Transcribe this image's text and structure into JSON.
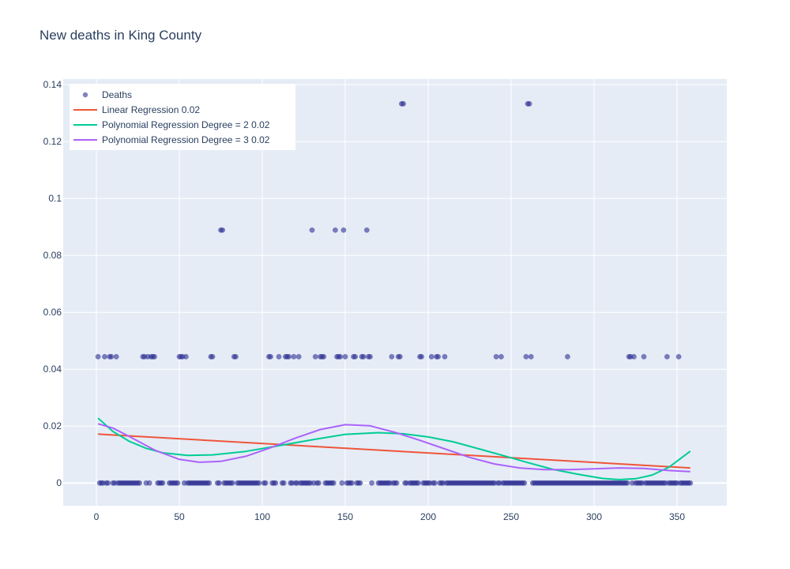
{
  "chart_data": {
    "type": "scatter",
    "title": "New deaths in King County",
    "xlabel": "",
    "ylabel": "",
    "xlim": [
      -20,
      380
    ],
    "ylim": [
      -0.008,
      0.142
    ],
    "x_ticks": [
      0,
      50,
      100,
      150,
      200,
      250,
      300,
      350
    ],
    "y_ticks": [
      0,
      0.02,
      0.04,
      0.06,
      0.08,
      0.1,
      0.12,
      0.14
    ],
    "y_tick_labels": [
      "0",
      "0.02",
      "0.04",
      "0.06",
      "0.08",
      "0.1",
      "0.12",
      "0.14"
    ],
    "grid": true,
    "legend_position": "top-left",
    "series": [
      {
        "name": "Deaths",
        "kind": "markers",
        "color": "#2e3192",
        "points_nonzero": [
          [
            1,
            0.0444
          ],
          [
            5,
            0.0444
          ],
          [
            8,
            0.0444
          ],
          [
            9,
            0.0444
          ],
          [
            12,
            0.0444
          ],
          [
            28,
            0.0444
          ],
          [
            29,
            0.0444
          ],
          [
            31,
            0.0444
          ],
          [
            33,
            0.0444
          ],
          [
            34,
            0.0444
          ],
          [
            35,
            0.0444
          ],
          [
            50,
            0.0444
          ],
          [
            51,
            0.0444
          ],
          [
            52,
            0.0444
          ],
          [
            54,
            0.0444
          ],
          [
            69,
            0.0444
          ],
          [
            70,
            0.0444
          ],
          [
            75,
            0.0889
          ],
          [
            76,
            0.0889
          ],
          [
            83,
            0.0444
          ],
          [
            84,
            0.0444
          ],
          [
            104,
            0.0444
          ],
          [
            105,
            0.0444
          ],
          [
            110,
            0.0444
          ],
          [
            114,
            0.0444
          ],
          [
            115,
            0.0444
          ],
          [
            116,
            0.0444
          ],
          [
            119,
            0.0444
          ],
          [
            122,
            0.0444
          ],
          [
            130,
            0.0889
          ],
          [
            132,
            0.0444
          ],
          [
            135,
            0.0444
          ],
          [
            136,
            0.0444
          ],
          [
            137,
            0.0444
          ],
          [
            144,
            0.0889
          ],
          [
            145,
            0.0444
          ],
          [
            146,
            0.0444
          ],
          [
            147,
            0.0444
          ],
          [
            149,
            0.0889
          ],
          [
            150,
            0.0444
          ],
          [
            155,
            0.0444
          ],
          [
            156,
            0.0444
          ],
          [
            160,
            0.0444
          ],
          [
            161,
            0.0444
          ],
          [
            163,
            0.0889
          ],
          [
            164,
            0.0444
          ],
          [
            165,
            0.0444
          ],
          [
            178,
            0.0444
          ],
          [
            182,
            0.0444
          ],
          [
            183,
            0.0444
          ],
          [
            184,
            0.1333
          ],
          [
            185,
            0.1333
          ],
          [
            195,
            0.0444
          ],
          [
            196,
            0.0444
          ],
          [
            202,
            0.0444
          ],
          [
            205,
            0.0444
          ],
          [
            206,
            0.0444
          ],
          [
            210,
            0.0444
          ],
          [
            241,
            0.0444
          ],
          [
            244,
            0.0444
          ],
          [
            259,
            0.0444
          ],
          [
            260,
            0.1333
          ],
          [
            261,
            0.1333
          ],
          [
            262,
            0.0444
          ],
          [
            284,
            0.0444
          ],
          [
            321,
            0.0444
          ],
          [
            322,
            0.0444
          ],
          [
            324,
            0.0444
          ],
          [
            330,
            0.0444
          ],
          [
            344,
            0.0444
          ],
          [
            351,
            0.0444
          ]
        ],
        "zero_ranges": [
          [
            2,
            4
          ],
          [
            6,
            7
          ],
          [
            10,
            11
          ],
          [
            13,
            26
          ],
          [
            30,
            30
          ],
          [
            32,
            32
          ],
          [
            37,
            40
          ],
          [
            44,
            49
          ],
          [
            53,
            53
          ],
          [
            55,
            68
          ],
          [
            73,
            74
          ],
          [
            77,
            82
          ],
          [
            85,
            98
          ],
          [
            101,
            102
          ],
          [
            106,
            108
          ],
          [
            112,
            113
          ],
          [
            117,
            118
          ],
          [
            120,
            121
          ],
          [
            123,
            129
          ],
          [
            131,
            131
          ],
          [
            133,
            134
          ],
          [
            138,
            143
          ],
          [
            148,
            148
          ],
          [
            151,
            154
          ],
          [
            157,
            159
          ],
          [
            166,
            166
          ],
          [
            170,
            177
          ],
          [
            179,
            181
          ],
          [
            186,
            187
          ],
          [
            189,
            194
          ],
          [
            197,
            201
          ],
          [
            203,
            204
          ],
          [
            207,
            209
          ],
          [
            211,
            240
          ],
          [
            242,
            243
          ],
          [
            245,
            258
          ],
          [
            263,
            320
          ],
          [
            323,
            323
          ],
          [
            325,
            329
          ],
          [
            331,
            343
          ],
          [
            345,
            350
          ],
          [
            352,
            358
          ]
        ]
      },
      {
        "name": "Linear Regression 0.02",
        "kind": "line",
        "color": "#ef553b",
        "x": [
          1,
          358
        ],
        "y": [
          0.0172,
          0.0053
        ]
      },
      {
        "name": "Polynomial Regression Degree = 2 0.02",
        "kind": "line",
        "color": "#00cc96",
        "x": [
          1,
          10,
          20,
          30,
          40,
          55,
          70,
          90,
          110,
          130,
          150,
          170,
          185,
          200,
          215,
          230,
          245,
          260,
          275,
          290,
          305,
          315,
          325,
          335,
          345,
          358
        ],
        "y": [
          0.0228,
          0.0181,
          0.0146,
          0.0122,
          0.0106,
          0.0097,
          0.0099,
          0.0111,
          0.0131,
          0.0152,
          0.0171,
          0.0177,
          0.0173,
          0.0162,
          0.0145,
          0.0121,
          0.0097,
          0.0072,
          0.0048,
          0.0031,
          0.0016,
          0.0012,
          0.0015,
          0.0028,
          0.0055,
          0.0112
        ]
      },
      {
        "name": "Polynomial Regression Degree = 3 0.02",
        "kind": "line",
        "color": "#ab63fa",
        "x": [
          1,
          10,
          20,
          35,
          50,
          62,
          75,
          90,
          105,
          120,
          135,
          150,
          165,
          180,
          195,
          210,
          225,
          240,
          255,
          270,
          285,
          300,
          315,
          330,
          345,
          358
        ],
        "y": [
          0.0208,
          0.0193,
          0.0163,
          0.0116,
          0.0083,
          0.0073,
          0.0076,
          0.0094,
          0.0124,
          0.0158,
          0.0188,
          0.0205,
          0.0201,
          0.0178,
          0.015,
          0.012,
          0.009,
          0.0067,
          0.0053,
          0.0047,
          0.0047,
          0.005,
          0.0053,
          0.0051,
          0.0044,
          0.004
        ]
      }
    ]
  }
}
